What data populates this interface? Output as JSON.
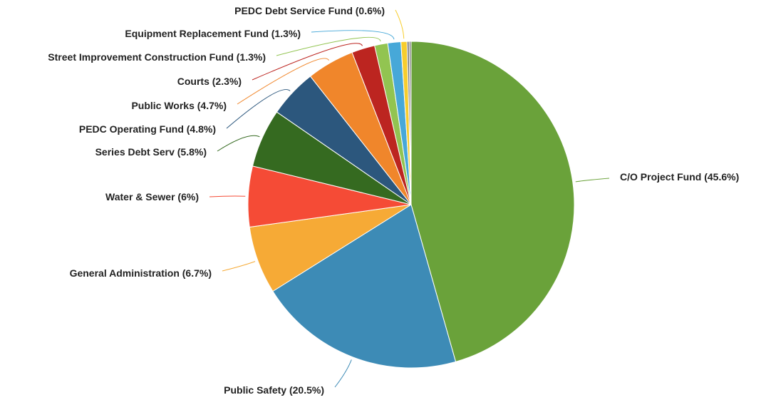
{
  "chart_data": {
    "type": "pie",
    "title": "",
    "start_angle_deg": 0,
    "direction": "clockwise",
    "slices": [
      {
        "label": "C/O Project Fund",
        "value": 45.6,
        "display": "C/O Project Fund (45.6%)",
        "color": "#6aa23a"
      },
      {
        "label": "Public Safety",
        "value": 20.5,
        "display": "Public Safety (20.5%)",
        "color": "#3d8bb6"
      },
      {
        "label": "General Administration",
        "value": 6.7,
        "display": "General Administration (6.7%)",
        "color": "#f6aa36"
      },
      {
        "label": "Water & Sewer",
        "value": 6,
        "display": "Water & Sewer (6%)",
        "color": "#f54b36"
      },
      {
        "label": "Series Debt Serv",
        "value": 5.8,
        "display": "Series Debt Serv (5.8%)",
        "color": "#356a20"
      },
      {
        "label": "PEDC Operating Fund",
        "value": 4.8,
        "display": "PEDC Operating Fund (4.8%)",
        "color": "#2c577d"
      },
      {
        "label": "Public Works",
        "value": 4.7,
        "display": "Public Works (4.7%)",
        "color": "#f0862b"
      },
      {
        "label": "Courts",
        "value": 2.3,
        "display": "Courts (2.3%)",
        "color": "#bc2520"
      },
      {
        "label": "Street Improvement Construction Fund",
        "value": 1.3,
        "display": "Street Improvement Construction Fund (1.3%)",
        "color": "#92c451"
      },
      {
        "label": "Equipment Replacement Fund",
        "value": 1.3,
        "display": "Equipment Replacement Fund (1.3%)",
        "color": "#47a8d8"
      },
      {
        "label": "PEDC Debt Service Fund",
        "value": 0.6,
        "display": "PEDC Debt Service Fund (0.6%)",
        "color": "#f7cd2d"
      },
      {
        "label": "",
        "value": 0.2,
        "display": "",
        "color": "#6f6f6f"
      },
      {
        "label": "",
        "value": 0.2,
        "display": "",
        "color": "#8c8c8c"
      }
    ]
  }
}
